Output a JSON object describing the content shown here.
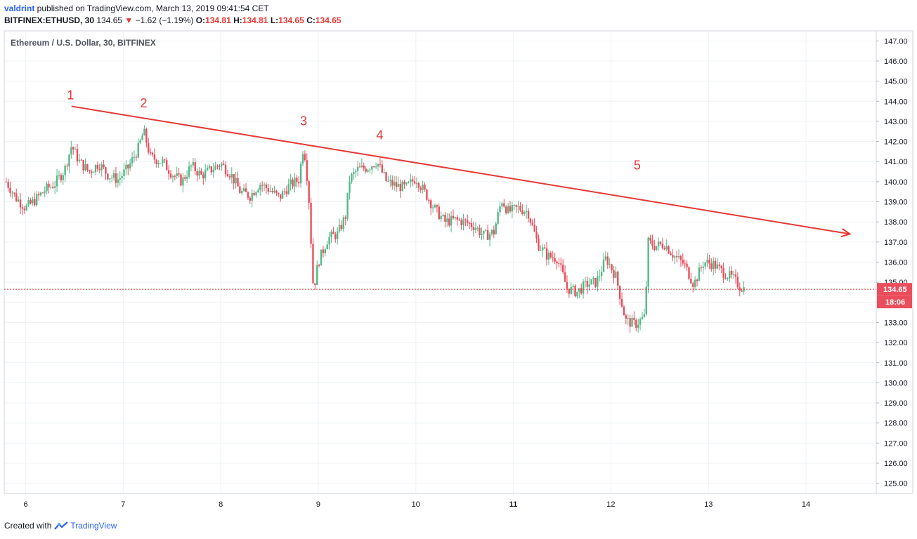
{
  "header": {
    "user": "valdrint",
    "published_text": " published on TradingView.com, March 13, 2019 09:41:54 CET",
    "symbol": "BITFINEX:ETHUSD, 30",
    "last": "134.65",
    "change_arrow": "▼",
    "change": "−1.62 (−1.19%)",
    "o_label": "O:",
    "o_val": "134.81",
    "h_label": "H:",
    "h_val": "134.81",
    "l_label": "L:",
    "l_val": "134.65",
    "c_label": "C:",
    "c_val": "134.65"
  },
  "footer": {
    "created_with": "Created with",
    "brand": "TradingView"
  },
  "chart_data": {
    "type": "candlestick",
    "title": "Ethereum / U.S. Dollar, 30, BITFINEX",
    "x_ticks": [
      {
        "label": "6",
        "day": 6
      },
      {
        "label": "7",
        "day": 7
      },
      {
        "label": "8",
        "day": 8
      },
      {
        "label": "9",
        "day": 9
      },
      {
        "label": "10",
        "day": 10
      },
      {
        "label": "11",
        "day": 11,
        "bold": true
      },
      {
        "label": "12",
        "day": 12
      },
      {
        "label": "13",
        "day": 13
      },
      {
        "label": "14",
        "day": 14
      }
    ],
    "y_ticks": [
      "147.00",
      "146.00",
      "145.00",
      "144.00",
      "143.00",
      "142.00",
      "141.00",
      "140.00",
      "139.00",
      "138.00",
      "137.00",
      "136.00",
      "135.00",
      "134.00",
      "133.00",
      "132.00",
      "131.00",
      "130.00",
      "129.00",
      "128.00",
      "127.00",
      "126.00",
      "125.00"
    ],
    "ylim": [
      124.5,
      147.5
    ],
    "xlim": [
      5.78,
      14.72
    ],
    "current_price": {
      "value": 134.65,
      "label": "134.65",
      "countdown": "18:06"
    },
    "colors": {
      "up": "#53b987",
      "down": "#eb4d5c",
      "trendline": "#e53935",
      "price_line": "#e53935",
      "grid": "#eef2f6"
    },
    "trendline": {
      "from": {
        "day": 6.47,
        "price": 143.75
      },
      "to": {
        "day": 14.45,
        "price": 137.4
      }
    },
    "annotations": [
      {
        "text": "1",
        "day": 6.46,
        "price": 144.1
      },
      {
        "text": "2",
        "day": 7.21,
        "price": 143.7
      },
      {
        "text": "3",
        "day": 8.85,
        "price": 142.8
      },
      {
        "text": "4",
        "day": 9.63,
        "price": 142.1
      },
      {
        "text": "5",
        "day": 12.27,
        "price": 140.6
      }
    ],
    "path_points": [
      [
        5.8,
        140.0
      ],
      [
        5.9,
        139.2
      ],
      [
        6.0,
        138.7
      ],
      [
        6.1,
        139.1
      ],
      [
        6.2,
        139.6
      ],
      [
        6.3,
        139.9
      ],
      [
        6.4,
        140.6
      ],
      [
        6.47,
        141.8
      ],
      [
        6.55,
        141.0
      ],
      [
        6.65,
        140.5
      ],
      [
        6.75,
        140.9
      ],
      [
        6.85,
        140.3
      ],
      [
        6.95,
        140.1
      ],
      [
        7.05,
        140.7
      ],
      [
        7.15,
        141.6
      ],
      [
        7.21,
        142.5
      ],
      [
        7.28,
        141.2
      ],
      [
        7.4,
        141.0
      ],
      [
        7.5,
        140.4
      ],
      [
        7.6,
        140.0
      ],
      [
        7.7,
        140.8
      ],
      [
        7.8,
        140.3
      ],
      [
        7.9,
        140.6
      ],
      [
        8.0,
        140.9
      ],
      [
        8.1,
        140.4
      ],
      [
        8.2,
        139.5
      ],
      [
        8.3,
        139.3
      ],
      [
        8.4,
        139.9
      ],
      [
        8.5,
        139.6
      ],
      [
        8.6,
        139.2
      ],
      [
        8.7,
        139.8
      ],
      [
        8.8,
        140.1
      ],
      [
        8.85,
        141.9
      ],
      [
        8.9,
        139.5
      ],
      [
        8.95,
        134.6
      ],
      [
        9.0,
        136.0
      ],
      [
        9.1,
        137.2
      ],
      [
        9.2,
        137.4
      ],
      [
        9.28,
        138.3
      ],
      [
        9.32,
        140.1
      ],
      [
        9.4,
        140.6
      ],
      [
        9.5,
        140.7
      ],
      [
        9.6,
        141.0
      ],
      [
        9.7,
        140.0
      ],
      [
        9.8,
        139.8
      ],
      [
        9.9,
        139.7
      ],
      [
        10.0,
        140.2
      ],
      [
        10.1,
        139.4
      ],
      [
        10.2,
        138.6
      ],
      [
        10.3,
        138.0
      ],
      [
        10.4,
        138.1
      ],
      [
        10.5,
        138.0
      ],
      [
        10.6,
        137.8
      ],
      [
        10.7,
        137.3
      ],
      [
        10.8,
        137.5
      ],
      [
        10.88,
        139.1
      ],
      [
        10.95,
        138.5
      ],
      [
        11.05,
        138.7
      ],
      [
        11.15,
        138.5
      ],
      [
        11.25,
        136.9
      ],
      [
        11.35,
        136.3
      ],
      [
        11.45,
        136.2
      ],
      [
        11.55,
        134.7
      ],
      [
        11.65,
        134.5
      ],
      [
        11.75,
        134.9
      ],
      [
        11.85,
        135.0
      ],
      [
        11.95,
        136.2
      ],
      [
        12.05,
        135.3
      ],
      [
        12.15,
        133.1
      ],
      [
        12.25,
        132.9
      ],
      [
        12.35,
        133.3
      ],
      [
        12.38,
        137.0
      ],
      [
        12.45,
        136.8
      ],
      [
        12.55,
        136.9
      ],
      [
        12.65,
        136.3
      ],
      [
        12.75,
        135.9
      ],
      [
        12.85,
        134.9
      ],
      [
        12.95,
        136.0
      ],
      [
        13.05,
        135.9
      ],
      [
        13.15,
        135.5
      ],
      [
        13.25,
        135.2
      ],
      [
        13.32,
        134.8
      ],
      [
        13.38,
        134.65
      ]
    ]
  }
}
